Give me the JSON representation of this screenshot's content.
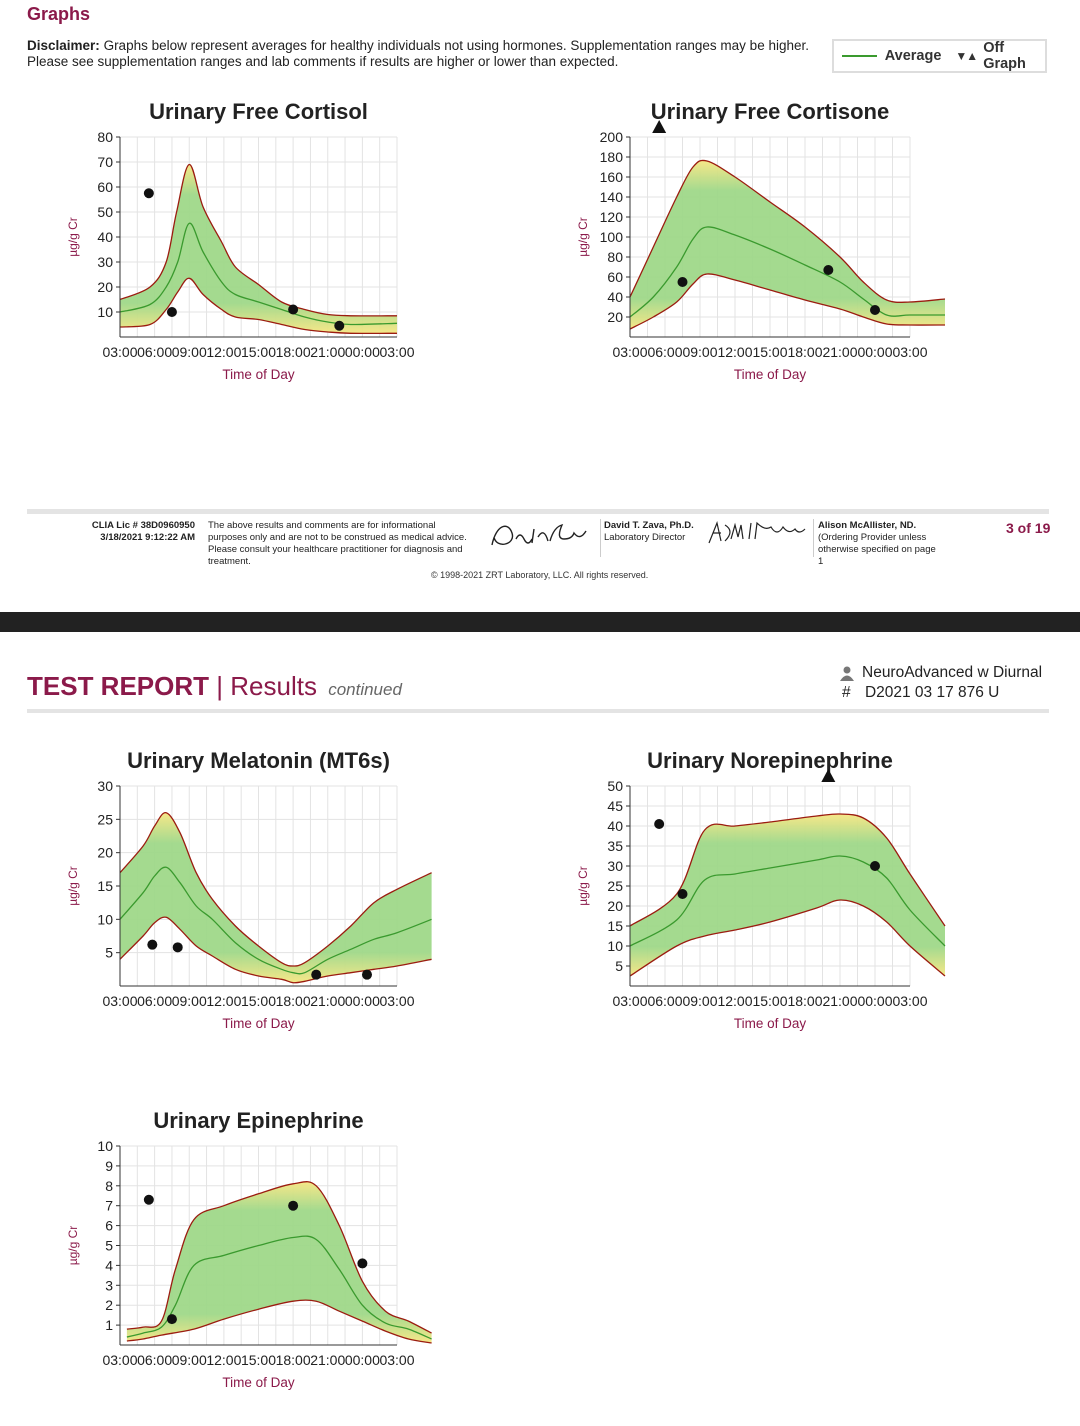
{
  "page": {
    "heading": "Graphs",
    "disclaimer_label": "Disclaimer:",
    "disclaimer_text": "Graphs below represent averages for healthy individuals not using hormones. Supplementation ranges may be higher. Please see supplementation ranges and lab comments if results are higher or lower than expected.",
    "legend_average": "Average",
    "legend_offgraph_symbol": "▼▲",
    "legend_offgraph": "Off Graph",
    "colors": {
      "brand": "#8b1a4a",
      "average_line": "#3a9a2e",
      "range_border": "#9b1c10",
      "band_inner": "#9fd889",
      "band_edge": "#f6e682"
    }
  },
  "footer": {
    "clia": "CLIA Lic # 38D0960950",
    "timestamp": "3/18/2021 9:12:22 AM",
    "note": "The above results and comments are for informational purposes only and are not to be construed as medical advice. Please consult your healthcare practitioner for diagnosis and treatment.",
    "director_name": "David T. Zava, Ph.D.",
    "director_title": "Laboratory Director",
    "provider_name": "Alison McAllister, ND.",
    "provider_note": "(Ordering Provider unless otherwise specified on page 1",
    "page": "3 of 19",
    "copyright": "© 1998-2021 ZRT Laboratory, LLC. All rights reserved."
  },
  "report_header": {
    "title_bold": "TEST REPORT",
    "separator": "|",
    "title_results": "Results",
    "title_continued": "continued",
    "panel_name": "NeuroAdvanced w Diurnal",
    "panel_id_symbol": "#",
    "panel_id": "D2021 03 17 876 U"
  },
  "chart_data": [
    {
      "type": "line",
      "title": "Urinary Free Cortisol",
      "xlabel": "Time of Day",
      "ylabel": "µg/g Cr",
      "x_ticks": [
        "03:00",
        "06:00",
        "09:00",
        "12:00",
        "15:00",
        "18:00",
        "21:00",
        "00:00",
        "03:00"
      ],
      "ylim": [
        0,
        80
      ],
      "y_ticks": [
        10,
        20,
        30,
        40,
        50,
        60,
        70,
        80
      ],
      "grid": true,
      "range_upper": [
        [
          0,
          15
        ],
        [
          1.3,
          20
        ],
        [
          2,
          30
        ],
        [
          2.45,
          50
        ],
        [
          3,
          69
        ],
        [
          3.6,
          52
        ],
        [
          4.4,
          38
        ],
        [
          5,
          28
        ],
        [
          6,
          21
        ],
        [
          7,
          14
        ],
        [
          8,
          11
        ],
        [
          9,
          9
        ],
        [
          10,
          8.5
        ],
        [
          12,
          8.5
        ]
      ],
      "range_average": [
        [
          0,
          10
        ],
        [
          1.3,
          13
        ],
        [
          2,
          20
        ],
        [
          2.5,
          30
        ],
        [
          3,
          45.5
        ],
        [
          3.6,
          34
        ],
        [
          4.4,
          22
        ],
        [
          5,
          17
        ],
        [
          6,
          14
        ],
        [
          7,
          11
        ],
        [
          8,
          8
        ],
        [
          9,
          6
        ],
        [
          10,
          5
        ],
        [
          12,
          5.5
        ]
      ],
      "range_lower": [
        [
          0,
          4
        ],
        [
          1.3,
          5
        ],
        [
          2,
          11
        ],
        [
          2.5,
          18
        ],
        [
          3,
          23.5
        ],
        [
          3.6,
          17
        ],
        [
          4.4,
          11
        ],
        [
          5,
          8
        ],
        [
          6,
          7
        ],
        [
          7,
          5
        ],
        [
          8,
          3
        ],
        [
          9,
          2
        ],
        [
          10,
          1.5
        ],
        [
          12,
          1.5
        ]
      ],
      "points": [
        [
          1.25,
          57.5
        ],
        [
          2.25,
          10
        ],
        [
          7.5,
          11
        ],
        [
          9.5,
          4.5
        ]
      ],
      "off_graph": []
    },
    {
      "type": "line",
      "title": "Urinary Free Cortisone",
      "xlabel": "Time of Day",
      "ylabel": "µg/g Cr",
      "x_ticks": [
        "03:00",
        "06:00",
        "09:00",
        "12:00",
        "15:00",
        "18:00",
        "21:00",
        "00:00",
        "03:00"
      ],
      "ylim": [
        0,
        200
      ],
      "y_ticks": [
        20,
        40,
        60,
        80,
        100,
        120,
        140,
        160,
        180,
        200
      ],
      "grid": true,
      "range_upper": [
        [
          0,
          40
        ],
        [
          1,
          90
        ],
        [
          2,
          140
        ],
        [
          2.7,
          170
        ],
        [
          3.3,
          176
        ],
        [
          4.5,
          160
        ],
        [
          6,
          135
        ],
        [
          7.5,
          110
        ],
        [
          9,
          80
        ],
        [
          10,
          55
        ],
        [
          11,
          37
        ],
        [
          12,
          35
        ],
        [
          13.5,
          38
        ]
      ],
      "range_average": [
        [
          0,
          20
        ],
        [
          1,
          40
        ],
        [
          2,
          70
        ],
        [
          2.7,
          98
        ],
        [
          3.3,
          110
        ],
        [
          4.5,
          102
        ],
        [
          6,
          88
        ],
        [
          7.5,
          72
        ],
        [
          9,
          55
        ],
        [
          10,
          38
        ],
        [
          11,
          22
        ],
        [
          12,
          22
        ],
        [
          13.5,
          22
        ]
      ],
      "range_lower": [
        [
          0,
          8
        ],
        [
          1,
          20
        ],
        [
          2,
          35
        ],
        [
          2.7,
          53
        ],
        [
          3.3,
          63
        ],
        [
          4.5,
          57
        ],
        [
          6,
          47
        ],
        [
          7.5,
          37
        ],
        [
          9,
          28
        ],
        [
          10,
          20
        ],
        [
          11,
          13
        ],
        [
          12,
          12
        ],
        [
          13.5,
          12
        ]
      ],
      "points": [
        [
          2.25,
          55
        ],
        [
          8.5,
          67
        ],
        [
          10.5,
          27
        ]
      ],
      "off_graph": [
        [
          1.25,
          "up"
        ]
      ]
    },
    {
      "type": "line",
      "title": "Urinary Melatonin (MT6s)",
      "xlabel": "Time of Day",
      "ylabel": "µg/g Cr",
      "x_ticks": [
        "03:00",
        "06:00",
        "09:00",
        "12:00",
        "15:00",
        "18:00",
        "21:00",
        "00:00",
        "03:00"
      ],
      "ylim": [
        0,
        30
      ],
      "y_ticks": [
        5,
        10,
        15,
        20,
        25,
        30
      ],
      "grid": true,
      "range_upper": [
        [
          0,
          17
        ],
        [
          1,
          21
        ],
        [
          1.5,
          24
        ],
        [
          2,
          26
        ],
        [
          2.6,
          23
        ],
        [
          3.3,
          17
        ],
        [
          4,
          13
        ],
        [
          5,
          9
        ],
        [
          6,
          6
        ],
        [
          7,
          3.5
        ],
        [
          7.5,
          3
        ],
        [
          8,
          3.5
        ],
        [
          9,
          6
        ],
        [
          10,
          9
        ],
        [
          11,
          12.5
        ],
        [
          12,
          14.5
        ],
        [
          13.5,
          17
        ]
      ],
      "range_average": [
        [
          0,
          10
        ],
        [
          1,
          14
        ],
        [
          1.5,
          16.5
        ],
        [
          2,
          17.8
        ],
        [
          2.6,
          15.5
        ],
        [
          3.3,
          12
        ],
        [
          4,
          10
        ],
        [
          5,
          6.5
        ],
        [
          6,
          4
        ],
        [
          7,
          2.5
        ],
        [
          7.5,
          2
        ],
        [
          8,
          2
        ],
        [
          9,
          4
        ],
        [
          10,
          5.5
        ],
        [
          11,
          7
        ],
        [
          12,
          8
        ],
        [
          13.5,
          10
        ]
      ],
      "range_lower": [
        [
          0,
          4
        ],
        [
          1,
          7.5
        ],
        [
          1.5,
          9.5
        ],
        [
          2,
          10.3
        ],
        [
          2.6,
          8.5
        ],
        [
          3.3,
          6
        ],
        [
          4,
          4.5
        ],
        [
          5,
          2.5
        ],
        [
          6,
          1.5
        ],
        [
          7,
          1
        ],
        [
          7.5,
          0.5
        ],
        [
          8,
          0.7
        ],
        [
          9,
          1.5
        ],
        [
          10,
          2
        ],
        [
          11,
          2.5
        ],
        [
          12,
          3
        ],
        [
          13.5,
          4
        ]
      ],
      "points": [
        [
          1.4,
          6.2
        ],
        [
          2.5,
          5.8
        ],
        [
          8.5,
          1.7
        ],
        [
          10.7,
          1.7
        ]
      ],
      "off_graph": []
    },
    {
      "type": "line",
      "title": "Urinary Norepinephrine",
      "xlabel": "Time of Day",
      "ylabel": "µg/g Cr",
      "x_ticks": [
        "03:00",
        "06:00",
        "09:00",
        "12:00",
        "15:00",
        "18:00",
        "21:00",
        "00:00",
        "03:00"
      ],
      "ylim": [
        0,
        50
      ],
      "y_ticks": [
        5,
        10,
        15,
        20,
        25,
        30,
        35,
        40,
        45,
        50
      ],
      "grid": true,
      "range_upper": [
        [
          0,
          15
        ],
        [
          2,
          23
        ],
        [
          3.2,
          39
        ],
        [
          4.5,
          40
        ],
        [
          6,
          41
        ],
        [
          8,
          42.5
        ],
        [
          9,
          43
        ],
        [
          10,
          42
        ],
        [
          11,
          37
        ],
        [
          12,
          28
        ],
        [
          13.5,
          15
        ]
      ],
      "range_average": [
        [
          0,
          10
        ],
        [
          2,
          16.5
        ],
        [
          3.2,
          26.5
        ],
        [
          4.5,
          28
        ],
        [
          6,
          29.5
        ],
        [
          8,
          31.5
        ],
        [
          9,
          32.5
        ],
        [
          10,
          31
        ],
        [
          11,
          27
        ],
        [
          12,
          19
        ],
        [
          13.5,
          10
        ]
      ],
      "range_lower": [
        [
          0,
          2.5
        ],
        [
          2,
          10
        ],
        [
          3.2,
          12.5
        ],
        [
          4.5,
          14
        ],
        [
          6,
          16
        ],
        [
          8,
          19.5
        ],
        [
          9,
          21.5
        ],
        [
          10,
          20
        ],
        [
          11,
          16
        ],
        [
          12,
          10
        ],
        [
          13.5,
          2.5
        ]
      ],
      "points": [
        [
          1.25,
          40.5
        ],
        [
          2.25,
          23
        ],
        [
          10.5,
          30
        ]
      ],
      "off_graph": [
        [
          8.5,
          "up"
        ]
      ]
    },
    {
      "type": "line",
      "title": "Urinary Epinephrine",
      "xlabel": "Time of Day",
      "ylabel": "µg/g Cr",
      "x_ticks": [
        "03:00",
        "06:00",
        "09:00",
        "12:00",
        "15:00",
        "18:00",
        "21:00",
        "00:00",
        "03:00"
      ],
      "ylim": [
        0,
        10
      ],
      "y_ticks": [
        1,
        2,
        3,
        4,
        5,
        6,
        7,
        8,
        9,
        10
      ],
      "grid": true,
      "range_upper": [
        [
          0.3,
          0.8
        ],
        [
          1,
          0.9
        ],
        [
          1.8,
          1.2
        ],
        [
          2.4,
          3.8
        ],
        [
          3.2,
          6.3
        ],
        [
          4.5,
          7.0
        ],
        [
          6,
          7.6
        ],
        [
          7.5,
          8.1
        ],
        [
          8.5,
          8.0
        ],
        [
          9.5,
          6.0
        ],
        [
          10.5,
          3.2
        ],
        [
          11.5,
          1.7
        ],
        [
          12.5,
          1.2
        ],
        [
          13.5,
          0.6
        ]
      ],
      "range_average": [
        [
          0.3,
          0.4
        ],
        [
          1,
          0.6
        ],
        [
          1.8,
          0.9
        ],
        [
          2.4,
          2.0
        ],
        [
          3.2,
          4.0
        ],
        [
          4.5,
          4.5
        ],
        [
          6,
          5.0
        ],
        [
          7.5,
          5.4
        ],
        [
          8.5,
          5.3
        ],
        [
          9.5,
          3.8
        ],
        [
          10.5,
          2.0
        ],
        [
          11.5,
          1.1
        ],
        [
          12.5,
          0.8
        ],
        [
          13.5,
          0.3
        ]
      ],
      "range_lower": [
        [
          0.3,
          0.2
        ],
        [
          1,
          0.3
        ],
        [
          1.8,
          0.5
        ],
        [
          3.2,
          0.8
        ],
        [
          4.5,
          1.3
        ],
        [
          6,
          1.8
        ],
        [
          7.5,
          2.2
        ],
        [
          8.5,
          2.2
        ],
        [
          9.5,
          1.7
        ],
        [
          10.5,
          1.2
        ],
        [
          11.5,
          0.7
        ],
        [
          12.5,
          0.3
        ],
        [
          13.5,
          0.1
        ]
      ],
      "points": [
        [
          1.25,
          7.3
        ],
        [
          2.25,
          1.3
        ],
        [
          7.5,
          7.0
        ],
        [
          10.5,
          4.1
        ]
      ],
      "off_graph": []
    }
  ]
}
